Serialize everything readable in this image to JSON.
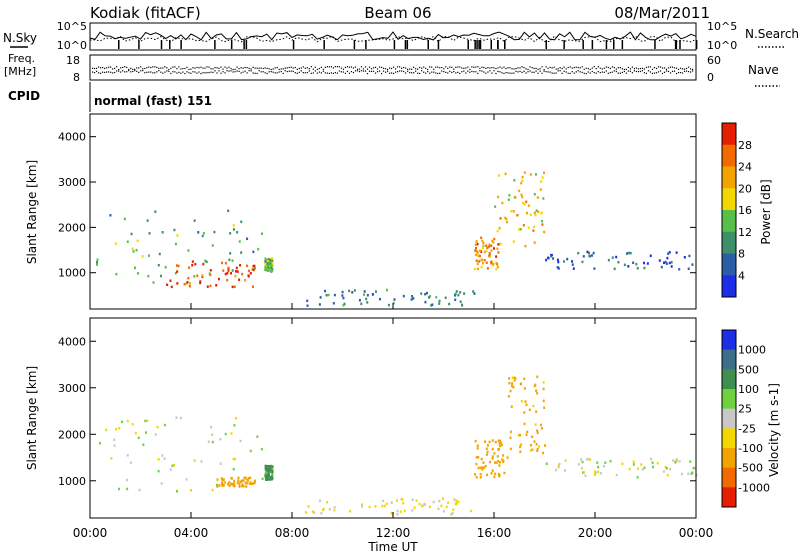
{
  "header": {
    "station": "Kodiak (fitACF)",
    "beam": "Beam 06",
    "date": "08/Mar/2011"
  },
  "top_strip": {
    "left_label": "N.Sky",
    "right_label": "N.Search",
    "left_ticks": [
      "10^5",
      "10^0"
    ],
    "right_ticks": [
      "10^5",
      "10^0"
    ]
  },
  "freq_strip": {
    "left_label_1": "Freq.",
    "left_label_2": "[MHz]",
    "right_label": "Nave",
    "left_ticks": [
      "18",
      "8"
    ],
    "right_ticks": [
      "60",
      "0"
    ]
  },
  "cpid": {
    "label": "CPID",
    "value": "normal (fast) 151"
  },
  "chart_data": [
    {
      "type": "heatmap",
      "panel": "power",
      "ylabel": "Slant Range [km]",
      "xlabel": "Time UT",
      "xlim": [
        0,
        24
      ],
      "ylim": [
        200,
        4500
      ],
      "x_ticks": [
        "00:00",
        "04:00",
        "08:00",
        "12:00",
        "16:00",
        "20:00",
        "00:00"
      ],
      "y_ticks": [
        1000,
        2000,
        3000,
        4000
      ],
      "colorbar": {
        "label": "Power [dB]",
        "ticks": [
          4,
          8,
          12,
          16,
          20,
          24,
          28
        ],
        "range": [
          0,
          32
        ],
        "colors": [
          "#1e2ee6",
          "#2a5fa8",
          "#3d8f6a",
          "#58c048",
          "#f2d800",
          "#f2a400",
          "#f26a00",
          "#e61e00"
        ]
      },
      "regions": [
        {
          "t": [
            0.2,
            6.8
          ],
          "r": [
            800,
            2400
          ],
          "dB": 12
        },
        {
          "t": [
            3.0,
            6.5
          ],
          "r": [
            700,
            1300
          ],
          "dB": 28
        },
        {
          "t": [
            6.9,
            7.2
          ],
          "r": [
            1050,
            1350
          ],
          "dB": 14
        },
        {
          "t": [
            8.5,
            15.2
          ],
          "r": [
            300,
            650
          ],
          "dB": 8
        },
        {
          "t": [
            15.2,
            16.2
          ],
          "r": [
            1100,
            1800
          ],
          "dB": 24
        },
        {
          "t": [
            16.0,
            18.0
          ],
          "r": [
            1600,
            3300
          ],
          "dB": 20
        },
        {
          "t": [
            18.0,
            24.0
          ],
          "r": [
            1100,
            1500
          ],
          "dB": 6
        }
      ]
    },
    {
      "type": "heatmap",
      "panel": "velocity",
      "ylabel": "Slant Range [km]",
      "xlabel": "Time UT",
      "xlim": [
        0,
        24
      ],
      "ylim": [
        200,
        4500
      ],
      "x_ticks": [
        "00:00",
        "04:00",
        "08:00",
        "12:00",
        "16:00",
        "20:00",
        "00:00"
      ],
      "y_ticks": [
        1000,
        2000,
        3000,
        4000
      ],
      "colorbar": {
        "label": "Velocity [m s-1]",
        "ticks": [
          "1000",
          "500",
          "100",
          "25",
          "-25",
          "-100",
          "-500",
          "-1000"
        ],
        "colors": [
          "#1e2ee6",
          "#3d6f8a",
          "#3f8f50",
          "#6fd040",
          "#c8c8c8",
          "#f2d800",
          "#f2a400",
          "#f26a00",
          "#e61e00"
        ]
      },
      "regions": [
        {
          "t": [
            0.2,
            6.8
          ],
          "r": [
            800,
            2400
          ],
          "v": 0
        },
        {
          "t": [
            5.0,
            6.5
          ],
          "r": [
            900,
            1100
          ],
          "v": -300
        },
        {
          "t": [
            6.9,
            7.2
          ],
          "r": [
            1050,
            1350
          ],
          "v": 150
        },
        {
          "t": [
            8.5,
            15.2
          ],
          "r": [
            300,
            650
          ],
          "v": -40
        },
        {
          "t": [
            15.2,
            16.5
          ],
          "r": [
            1100,
            1900
          ],
          "v": -300
        },
        {
          "t": [
            16.5,
            18.0
          ],
          "r": [
            1600,
            3300
          ],
          "v": -150
        },
        {
          "t": [
            18.0,
            24.0
          ],
          "r": [
            1100,
            1500
          ],
          "v": 0
        }
      ]
    }
  ]
}
